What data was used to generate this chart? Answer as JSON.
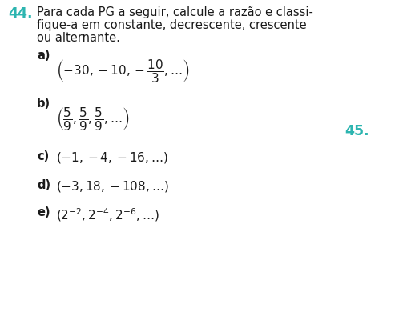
{
  "number": "44.",
  "number_color": "#2db5b0",
  "intro_line1": "Para cada PG a seguir, calcule a razão e classi-",
  "intro_line2": "fique-a em constante, decrescente, crescente",
  "intro_line3": "ou alternante.",
  "side_number": "45.",
  "side_number_color": "#2db5b0",
  "bg_color": "#ffffff",
  "text_color": "#1a1a1a",
  "label_a": "a)",
  "label_b": "b)",
  "label_c": "c)",
  "label_d": "d)",
  "label_e": "e)",
  "item_a": "$\\left(-30, -10, -\\dfrac{10}{3}, \\ldots\\right)$",
  "item_b": "$\\left(\\dfrac{5}{9}, \\dfrac{5}{9}, \\dfrac{5}{9}, \\ldots\\right)$",
  "item_c": "$(-1, -4, -16, \\ldots)$",
  "item_d": "$(-3, 18, -108, \\ldots)$",
  "item_e": "$\\left(2^{-2}, 2^{-4}, 2^{-6}, \\ldots\\right)$",
  "fs_main": 10.5,
  "fs_num": 12.5,
  "fs_math": 11.0
}
